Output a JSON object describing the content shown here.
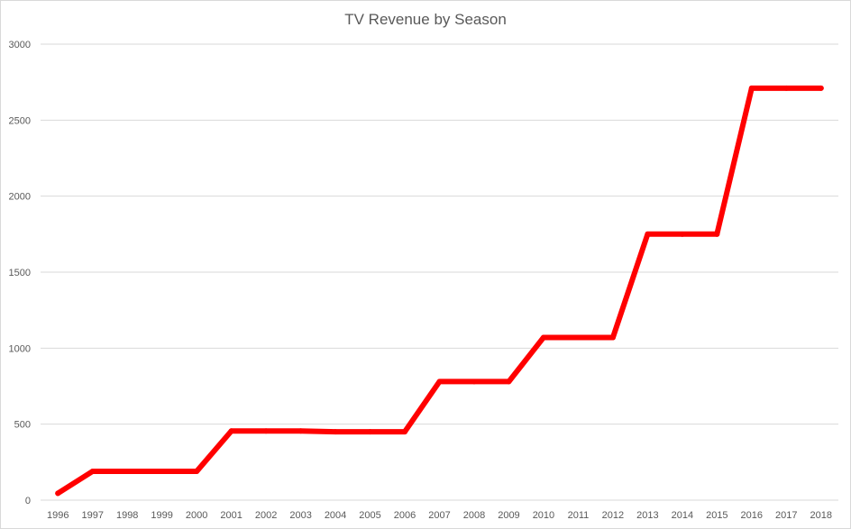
{
  "chart_data": {
    "type": "line",
    "title": "TV Revenue by Season",
    "xlabel": "",
    "ylabel": "",
    "x": [
      "1996",
      "1997",
      "1998",
      "1999",
      "2000",
      "2001",
      "2002",
      "2003",
      "2004",
      "2005",
      "2006",
      "2007",
      "2008",
      "2009",
      "2010",
      "2011",
      "2012",
      "2013",
      "2014",
      "2015",
      "2016",
      "2017",
      "2018"
    ],
    "series": [
      {
        "values": [
          45,
          190,
          190,
          190,
          190,
          455,
          455,
          455,
          450,
          450,
          450,
          780,
          780,
          780,
          1070,
          1070,
          1070,
          1750,
          1750,
          1750,
          2710,
          2710,
          2710
        ],
        "color": "#ff0000"
      }
    ],
    "ylim": [
      0,
      3000
    ],
    "yticks": [
      "0",
      "500",
      "1000",
      "1500",
      "2000",
      "2500",
      "3000"
    ],
    "ytick_values": [
      0,
      500,
      1000,
      1500,
      2000,
      2500,
      3000
    ],
    "grid": true,
    "legend": "none"
  }
}
